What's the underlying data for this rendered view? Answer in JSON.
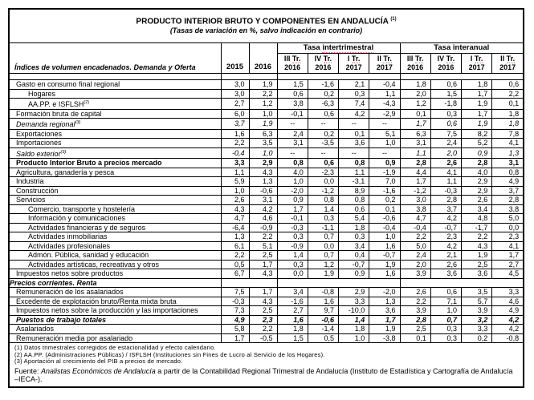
{
  "title": "PRODUCTO INTERIOR BRUTO Y COMPONENTES EN ANDALUCÍA",
  "title_footnote_ref": "(1)",
  "subtitle": "(Tasas de variación en %, salvo indicación en contrario)",
  "header": {
    "row_label": "Índices de volumen encadenados. Demanda y Oferta",
    "year_cols": [
      "2015",
      "2016"
    ],
    "groups": [
      {
        "prefix": "Tasa ",
        "word": "intertrimestral"
      },
      {
        "prefix": "Tasa ",
        "word": "interanual"
      }
    ],
    "quarters": [
      {
        "l1a": "III ",
        "l1b": "Tr.",
        "l2": "2016"
      },
      {
        "l1a": "IV ",
        "l1b": "Tr.",
        "l2": "2016"
      },
      {
        "l1a": "I ",
        "l1b": "Tr.",
        "l2": "2017"
      },
      {
        "l1a": "II ",
        "l1b": "Tr.",
        "l2": "2017"
      },
      {
        "l1a": "III ",
        "l1b": "Tr.",
        "l2": "2016"
      },
      {
        "l1a": "IV ",
        "l1b": "Tr.",
        "l2": "2016"
      },
      {
        "l1a": "I ",
        "l1b": "Tr.",
        "l2": "2017"
      },
      {
        "l1a": "II ",
        "l1b": "Tr.",
        "l2": "2017"
      }
    ]
  },
  "rows": [
    {
      "label": "Gasto en consumo final regional",
      "style": "normal",
      "indent": false,
      "values": [
        "3,0",
        "1,9",
        "1,5",
        "-1,6",
        "2,1",
        "-0,4",
        "1,8",
        "0,6",
        "1,8",
        "0,6"
      ]
    },
    {
      "label": "Hogares",
      "style": "normal",
      "indent": true,
      "values": [
        "3,0",
        "2,2",
        "0,6",
        "0,2",
        "0,3",
        "1,1",
        "2,0",
        "1,5",
        "1,7",
        "2,2"
      ]
    },
    {
      "label": "AA.PP. e ISFLSH",
      "sup": "(2)",
      "style": "normal",
      "indent": true,
      "values": [
        "2,7",
        "1,2",
        "3,8",
        "-6,3",
        "7,4",
        "-4,3",
        "1,2",
        "-1,8",
        "1,9",
        "0,1"
      ]
    },
    {
      "label": "Formación bruta de capital",
      "style": "normal",
      "indent": false,
      "values": [
        "6,0",
        "1,0",
        "-0,1",
        "0,6",
        "4,2",
        "-2,9",
        "0,1",
        "0,3",
        "1,7",
        "1,8"
      ]
    },
    {
      "label": "Demanda regional",
      "sup": "(3)",
      "style": "italic",
      "indent": false,
      "values": [
        "3,7",
        "1,9",
        "--",
        "--",
        "--",
        "--",
        "1,7",
        "0,6",
        "1,9",
        "1,8"
      ]
    },
    {
      "label": "Exportaciones",
      "style": "normal",
      "indent": false,
      "values": [
        "1,6",
        "6,3",
        "2,4",
        "0,2",
        "0,1",
        "5,1",
        "6,3",
        "7,5",
        "8,2",
        "7,8"
      ]
    },
    {
      "label": "Importaciones",
      "style": "normal",
      "indent": false,
      "values": [
        "2,2",
        "3,5",
        "3,1",
        "-3,5",
        "3,6",
        "1,0",
        "3,1",
        "2,4",
        "5,2",
        "4,1"
      ]
    },
    {
      "label": "Saldo exterior",
      "sup": "(3)",
      "style": "italic",
      "indent": false,
      "values": [
        "-0,4",
        "1,0",
        "--",
        "--",
        "--",
        "--",
        "1,1",
        "2,0",
        "0,9",
        "1,3"
      ]
    },
    {
      "label": "Producto Interior Bruto a precios mercado",
      "style": "bold",
      "indent": false,
      "values": [
        "3,3",
        "2,9",
        "0,8",
        "0,6",
        "0,8",
        "0,9",
        "2,8",
        "2,6",
        "2,8",
        "3,1"
      ]
    },
    {
      "label": "Agricultura, ganadería y pesca",
      "style": "normal",
      "indent": false,
      "values": [
        "1,1",
        "4,3",
        "4,0",
        "-2,3",
        "1,1",
        "-1,9",
        "4,4",
        "4,1",
        "4,0",
        "0,8"
      ]
    },
    {
      "label": "Industria",
      "style": "normal",
      "indent": false,
      "values": [
        "5,9",
        "1,3",
        "1,0",
        "0,0",
        "-3,1",
        "7,0",
        "1,7",
        "1,1",
        "2,9",
        "4,9"
      ]
    },
    {
      "label": "Construcción",
      "style": "normal",
      "indent": false,
      "values": [
        "1,0",
        "-0,6",
        "-2,0",
        "-1,2",
        "8,9",
        "-1,6",
        "-1,2",
        "-0,3",
        "2,9",
        "3,7"
      ]
    },
    {
      "label": "Servicios",
      "style": "normal",
      "indent": false,
      "values": [
        "2,6",
        "3,1",
        "0,9",
        "0,8",
        "0,8",
        "0,2",
        "3,0",
        "2,8",
        "2,6",
        "2,8"
      ]
    },
    {
      "label": "Comercio, transporte y hostelería",
      "style": "normal",
      "indent": true,
      "values": [
        "4,3",
        "4,2",
        "1,7",
        "1,4",
        "0,6",
        "0,1",
        "3,8",
        "3,7",
        "3,4",
        "3,8"
      ]
    },
    {
      "label": "Información y comunicaciones",
      "style": "normal",
      "indent": true,
      "values": [
        "4,7",
        "4,6",
        "-0,1",
        "0,3",
        "5,4",
        "-0,6",
        "4,7",
        "4,2",
        "4,8",
        "5,0"
      ]
    },
    {
      "label": "Actividades financieras y de seguros",
      "style": "normal",
      "indent": true,
      "values": [
        "-6,4",
        "-0,9",
        "-0,3",
        "-1,1",
        "1,8",
        "-0,4",
        "-0,4",
        "-0,7",
        "-1,7",
        "0,0"
      ]
    },
    {
      "label": "Actividades inmobiliarias",
      "style": "normal",
      "indent": true,
      "values": [
        "1,3",
        "2,2",
        "0,3",
        "0,7",
        "0,3",
        "1,0",
        "2,2",
        "2,3",
        "2,2",
        "2,3"
      ]
    },
    {
      "label": "Actividades profesionales",
      "style": "normal",
      "indent": true,
      "values": [
        "6,1",
        "5,1",
        "-0,9",
        "0,0",
        "3,4",
        "1,6",
        "5,0",
        "4,2",
        "4,3",
        "4,1"
      ]
    },
    {
      "label": "Admón. Pública, sanidad y educación",
      "style": "normal",
      "indent": true,
      "values": [
        "2,2",
        "2,5",
        "1,4",
        "0,7",
        "0,4",
        "-0,7",
        "2,4",
        "2,1",
        "1,9",
        "1,7"
      ]
    },
    {
      "label": "Actividades artísticas, recreativas y otros",
      "style": "normal",
      "indent": true,
      "values": [
        "0,5",
        "1,7",
        "0,3",
        "1,2",
        "-0,7",
        "1,9",
        "2,0",
        "2,6",
        "2,5",
        "2,7"
      ]
    },
    {
      "label": "Impuestos netos sobre productos",
      "style": "normal",
      "indent": false,
      "values": [
        "6,7",
        "4,3",
        "0,0",
        "1,9",
        "0,9",
        "1,6",
        "3,9",
        "3,6",
        "3,6",
        "4,5"
      ]
    },
    {
      "label": "Precios corrientes. Renta",
      "style": "section",
      "indent": false,
      "values": null
    },
    {
      "label": "Remuneración de los asalariados",
      "style": "normal",
      "indent": false,
      "values": [
        "7,5",
        "1,7",
        "3,4",
        "-0,8",
        "2,9",
        "-2,0",
        "2,6",
        "0,6",
        "3,5",
        "3,3"
      ]
    },
    {
      "label": "Excedente de explotación bruto/Renta mixta bruta",
      "style": "normal",
      "indent": false,
      "values": [
        "-0,3",
        "4,3",
        "-1,6",
        "1,6",
        "3,3",
        "1,3",
        "2,2",
        "7,1",
        "5,7",
        "4,6"
      ]
    },
    {
      "label": "Impuestos netos sobre la producción y las importaciones",
      "style": "normal",
      "indent": false,
      "values": [
        "7,3",
        "2,5",
        "2,7",
        "9,7",
        "-10,0",
        "3,6",
        "3,9",
        "1,0",
        "3,9",
        "4,9"
      ]
    },
    {
      "label": "Puestos de trabajo totales",
      "style": "bolditalic",
      "indent": false,
      "values": [
        "4,9",
        "2,3",
        "1,6",
        "-0,6",
        "1,4",
        "1,7",
        "2,8",
        "0,7",
        "3,2",
        "4,2"
      ]
    },
    {
      "label": "Asalariados",
      "style": "normal",
      "indent": false,
      "values": [
        "5,8",
        "2,2",
        "1,8",
        "-1,4",
        "1,8",
        "1,9",
        "2,5",
        "0,3",
        "3,3",
        "4,2"
      ]
    },
    {
      "label": "Remuneración media por asalariado",
      "style": "normal",
      "indent": false,
      "values": [
        "1,7",
        "-0,5",
        "1,5",
        "0,5",
        "1,0",
        "-3,8",
        "0,1",
        "0,3",
        "0,2",
        "-0,8"
      ]
    }
  ],
  "footnotes": [
    "(1) Datos trimestrales corregidos de estacionalidad y efecto calendario.",
    "(2) AA.PP. (Administraciones Públicas) / ISFLSH (Instituciones sin Fines de Lucro al Servicio de los Hogares).",
    "(3) Aportación al crecimiento del PIB a precios de mercado."
  ],
  "source": {
    "prefix": "Fuente: ",
    "italic": "Analistas Económicos de Andalucía",
    "suffix": " a partir de la Contabilidad Regional Trimestral de Andalucía (Instituto de Estadística y Cartografía de Andalucía –IECA-)."
  }
}
